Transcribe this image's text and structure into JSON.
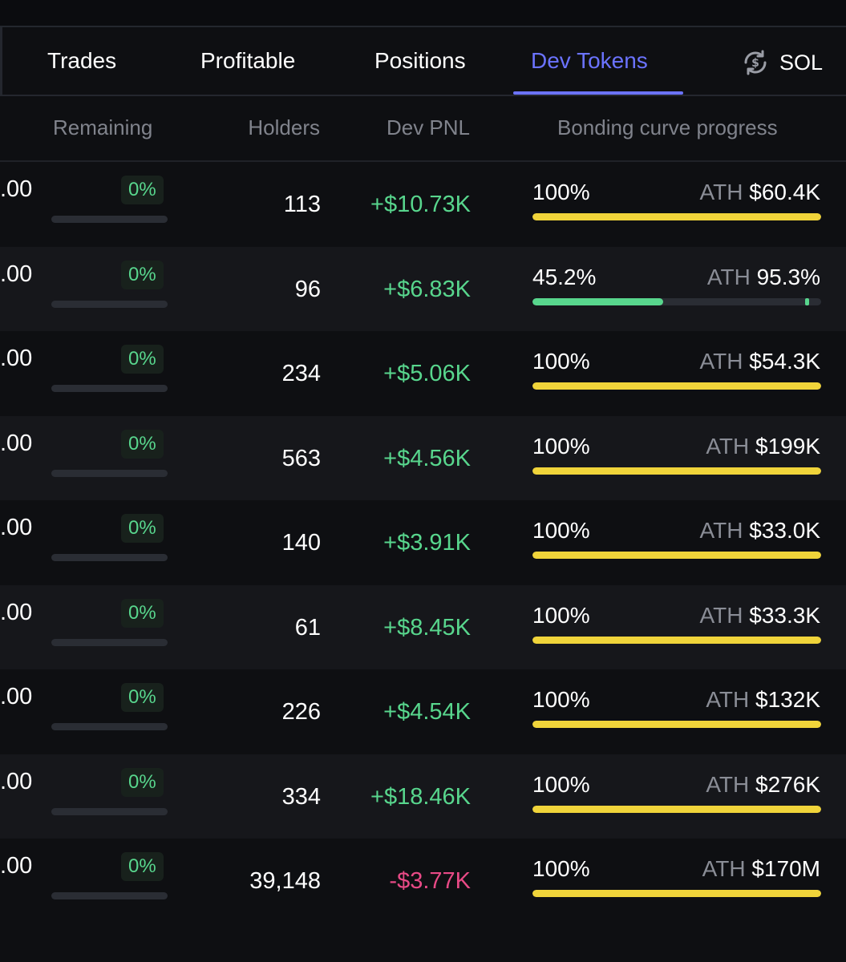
{
  "tabs": [
    {
      "label": "Trades",
      "active": false
    },
    {
      "label": "Profitable",
      "active": false
    },
    {
      "label": "Positions",
      "active": false
    },
    {
      "label": "Dev Tokens",
      "active": true
    }
  ],
  "currency": {
    "label": "SOL",
    "icon": "currency-swap-icon"
  },
  "colors": {
    "accent": "#6b73ff",
    "positive": "#58d68d",
    "negative": "#e84a86",
    "progress_full": "#f0d43a",
    "progress_partial": "#58d68d",
    "background": "#0e0f12",
    "row_alt": "#16171b"
  },
  "columns": {
    "remaining": "Remaining",
    "holders": "Holders",
    "dev_pnl": "Dev PNL",
    "bonding_curve": "Bonding curve progress"
  },
  "ath_label": "ATH",
  "rows": [
    {
      "amount": ".00",
      "remaining": "0%",
      "remaining_fraction": 0,
      "holders": "113",
      "dev_pnl": "+$10.73K",
      "pnl_sign": "pos",
      "bc_percent": "100%",
      "bc_fraction": 1.0,
      "ath_value": "$60.4K"
    },
    {
      "amount": ".00",
      "remaining": "0%",
      "remaining_fraction": 0,
      "holders": "96",
      "dev_pnl": "+$6.83K",
      "pnl_sign": "pos",
      "bc_percent": "45.2%",
      "bc_fraction": 0.452,
      "ath_value": "95.3%",
      "ath_fraction": 0.953
    },
    {
      "amount": ".00",
      "remaining": "0%",
      "remaining_fraction": 0,
      "holders": "234",
      "dev_pnl": "+$5.06K",
      "pnl_sign": "pos",
      "bc_percent": "100%",
      "bc_fraction": 1.0,
      "ath_value": "$54.3K"
    },
    {
      "amount": ".00",
      "remaining": "0%",
      "remaining_fraction": 0,
      "holders": "563",
      "dev_pnl": "+$4.56K",
      "pnl_sign": "pos",
      "bc_percent": "100%",
      "bc_fraction": 1.0,
      "ath_value": "$199K"
    },
    {
      "amount": ".00",
      "remaining": "0%",
      "remaining_fraction": 0,
      "holders": "140",
      "dev_pnl": "+$3.91K",
      "pnl_sign": "pos",
      "bc_percent": "100%",
      "bc_fraction": 1.0,
      "ath_value": "$33.0K"
    },
    {
      "amount": ".00",
      "remaining": "0%",
      "remaining_fraction": 0,
      "holders": "61",
      "dev_pnl": "+$8.45K",
      "pnl_sign": "pos",
      "bc_percent": "100%",
      "bc_fraction": 1.0,
      "ath_value": "$33.3K"
    },
    {
      "amount": ".00",
      "remaining": "0%",
      "remaining_fraction": 0,
      "holders": "226",
      "dev_pnl": "+$4.54K",
      "pnl_sign": "pos",
      "bc_percent": "100%",
      "bc_fraction": 1.0,
      "ath_value": "$132K"
    },
    {
      "amount": ".00",
      "remaining": "0%",
      "remaining_fraction": 0,
      "holders": "334",
      "dev_pnl": "+$18.46K",
      "pnl_sign": "pos",
      "bc_percent": "100%",
      "bc_fraction": 1.0,
      "ath_value": "$276K"
    },
    {
      "amount": ".00",
      "remaining": "0%",
      "remaining_fraction": 0,
      "holders": "39,148",
      "dev_pnl": "-$3.77K",
      "pnl_sign": "neg",
      "bc_percent": "100%",
      "bc_fraction": 1.0,
      "ath_value": "$170M"
    }
  ]
}
